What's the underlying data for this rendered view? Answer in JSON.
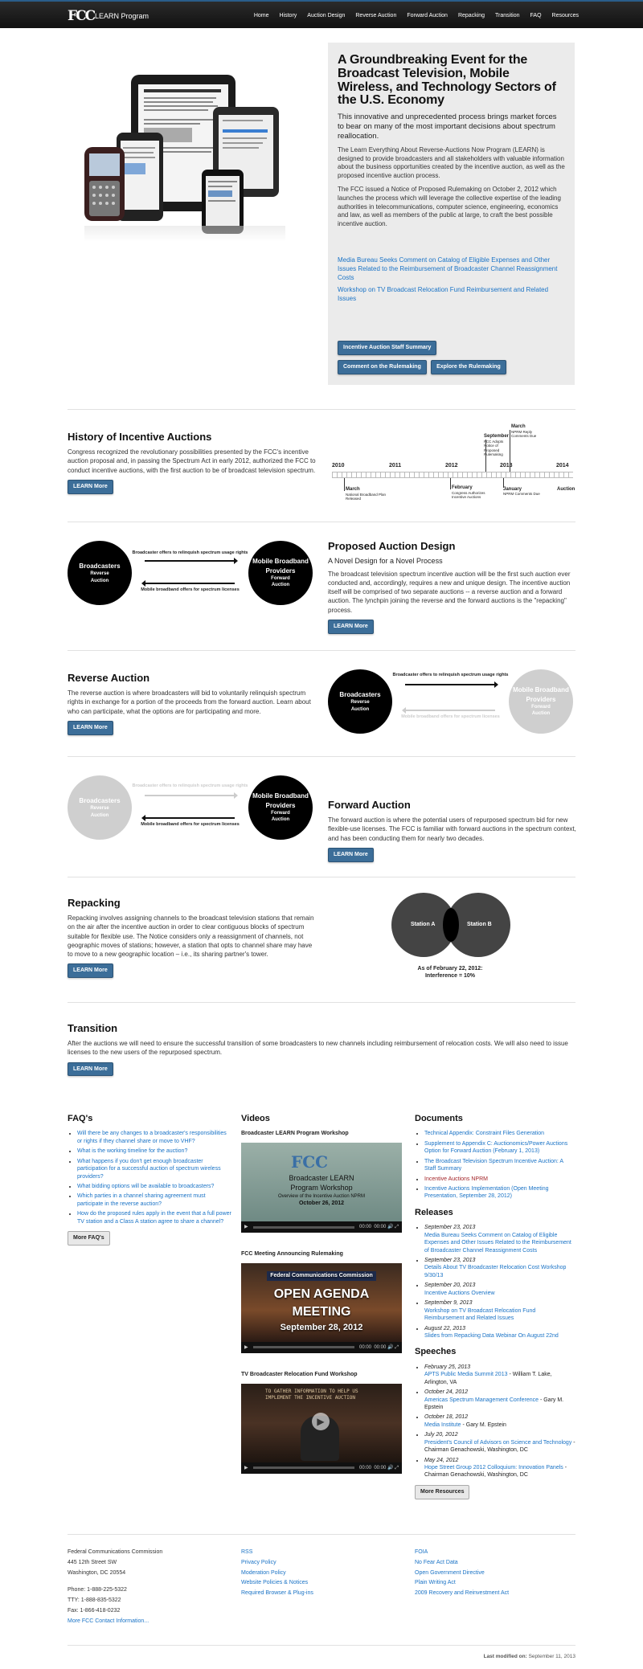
{
  "header": {
    "logo": "FCC",
    "brand": "LEARN Program",
    "nav": [
      "Home",
      "History",
      "Auction Design",
      "Reverse Auction",
      "Forward Auction",
      "Repacking",
      "Transition",
      "FAQ",
      "Resources"
    ]
  },
  "hero": {
    "title": "A Groundbreaking Event for the Broadcast Television, Mobile Wireless, and Technology Sectors of the U.S. Economy",
    "lead": "This innovative and unprecedented process brings market forces to bear on many of the most important decisions about spectrum reallocation.",
    "p1": "The Learn Everything About Reverse-Auctions Now Program (LEARN) is designed to provide broadcasters and all stakeholders with valuable information about the business opportunities created by the incentive auction, as well as the proposed incentive auction process.",
    "p2": "The FCC issued a Notice of Proposed Rulemaking on October 2, 2012 which launches the process which will leverage the collective expertise of the leading authorities in telecommunications, computer science, engineering, economics and law, as well as members of the public at large, to craft the best possible incentive auction.",
    "link1": "Media Bureau Seeks Comment on Catalog of Eligible Expenses and Other Issues Related to the Reimbursement of Broadcaster Channel Reassignment Costs",
    "link2": "Workshop on TV Broadcast Relocation Fund Reimbursement and Related Issues",
    "btn1": "Incentive Auction Staff Summary",
    "btn2": "Comment on the Rulemaking",
    "btn3": "Explore the Rulemaking"
  },
  "history": {
    "title": "History of Incentive Auctions",
    "text": "Congress recognized the revolutionary possibilities presented by the FCC's incentive auction proposal and, in passing the Spectrum Act in early 2012, authorized the FCC to conduct incentive auctions, with the first auction to be of broadcast television spectrum.",
    "btn": "LEARN More",
    "years": [
      "2010",
      "2011",
      "2012",
      "2013",
      "2014"
    ],
    "ev_march": "March",
    "ev_march_d": "National Broadband Plan Released",
    "ev_feb": "February",
    "ev_feb_d": "Congress Authorizes Incentive Auctions",
    "ev_sep": "September",
    "ev_sep_d": "FCC Adopts Notice of Proposed Rulemaking",
    "ev_march2": "March",
    "ev_march2_d": "NPRM Reply Comments Due",
    "ev_jan": "January",
    "ev_jan_d": "NPRM Comments Due",
    "ev_auction": "Auction"
  },
  "design": {
    "title": "Proposed Auction Design",
    "subtitle": "A Novel Design for a Novel Process",
    "text": "The broadcast television spectrum incentive auction will be the first such auction ever conducted and, accordingly, requires a new and unique design. The incentive auction itself will be comprised of two separate auctions -- a reverse auction and a forward auction. The lynchpin joining the reverse and the forward auctions is the \"repacking\" process.",
    "btn": "LEARN More"
  },
  "diagram": {
    "b1": "Broadcasters",
    "b2": "Reverse",
    "b3": "Auction",
    "m1": "Mobile Broadband",
    "m2": "Providers",
    "m3": "Forward",
    "m4": "Auction",
    "top": "Broadcaster offers to relinquish spectrum usage rights",
    "bottom": "Mobile broadband offers for spectrum licenses"
  },
  "reverse": {
    "title": "Reverse Auction",
    "text": "The reverse auction is where broadcasters will bid to voluntarily relinquish spectrum rights in exchange for a portion of the proceeds from the forward auction. Learn about who can participate, what the options are for participating and more.",
    "btn": "LEARN More"
  },
  "forward": {
    "title": "Forward Auction",
    "text": "The forward auction is where the potential users of repurposed spectrum bid for new flexible-use licenses. The FCC is familiar with forward auctions in the spectrum context, and has been conducting them for nearly two decades.",
    "btn": "LEARN More"
  },
  "repacking": {
    "title": "Repacking",
    "text": "Repacking involves assigning channels to the broadcast television stations that remain on the air after the incentive auction in order to clear contiguous blocks of spectrum suitable for flexible use. The Notice considers only a reassignment of channels, not geographic moves of stations; however, a station that opts to channel share may have to move to a new geographic location – i.e., its sharing partner's tower.",
    "btn": "LEARN More",
    "a": "Station A",
    "b": "Station B",
    "cap1": "As of February 22, 2012:",
    "cap2": "Interference = 10%"
  },
  "transition": {
    "title": "Transition",
    "text": "After the auctions we will need to ensure the successful transition of some broadcasters to new channels including reimbursement of relocation costs. We will also need to issue licenses to the new users of the repurposed spectrum.",
    "btn": "LEARN More"
  },
  "faqs": {
    "title": "FAQ's",
    "items": [
      "Will there be any changes to a broadcaster's responsibilities or rights if they channel share or move to VHF?",
      "What is the working timeline for the auction?",
      "What happens if you don't get enough broadcaster participation for a successful auction of spectrum wireless providers?",
      "What bidding options will be available to broadcasters?",
      "Which parties in a channel sharing agreement must participate in the reverse auction?",
      "How do the proposed rules apply in the event that a full power TV station and a Class A station agree to share a channel?"
    ],
    "btn": "More FAQ's"
  },
  "videos": {
    "title": "Videos",
    "v1": "Broadcaster LEARN Program Workshop",
    "v1a": "Broadcaster LEARN",
    "v1b": "Program Workshop",
    "v1c": "Overview of the Incentive Auction NPRM",
    "v1d": "October 26, 2012",
    "v2": "FCC Meeting Announcing Rulemaking",
    "v2a": "Federal Communications Commission",
    "v2b": "OPEN AGENDA",
    "v2c": "MEETING",
    "v2d": "September 28, 2012",
    "v3": "TV Broadcaster Relocation Fund Workshop",
    "v3a": "TO GATHER INFORMATION TO HELP US",
    "v3b": "IMPLEMENT THE INCENTIVE AUCTION",
    "time": "00:00"
  },
  "documents": {
    "title": "Documents",
    "items": [
      "Technical Appendix: Constraint Files Generation",
      "Supplement to Appendix C: Auctionomics/Power Auctions Option for Forward Auction (February 1, 2013)",
      "The Broadcast Television Spectrum Incentive Auction: A Staff Summary",
      "Incentive Auctions NPRM",
      "Incentive Auctions Implementation (Open Meeting Presentation, September 28, 2012)"
    ]
  },
  "releases": {
    "title": "Releases",
    "d1": "September 23, 2013",
    "l1": "Media Bureau Seeks Comment on Catalog of Eligible Expenses and Other Issues Related to the Reimbursement of Broadcaster Channel Reassignment Costs",
    "d2": "September 23, 2013",
    "l2": "Details About TV Broadcaster Relocation Cost Workshop 9/30/13",
    "d3": "September 20, 2013",
    "l3": "Incentive Auctions Overview",
    "d4": "September 9, 2013",
    "l4": "Workshop on TV Broadcast Relocation Fund Reimbursement and Related Issues",
    "d5": "August 22, 2013",
    "l5": "Slides from Repacking Data Webinar On August 22nd"
  },
  "speeches": {
    "title": "Speeches",
    "d1": "February 25, 2013",
    "l1": "APTS Public Media Summit 2013",
    "t1": " - William T. Lake, Arlington, VA",
    "d2": "October 24, 2012",
    "l2": "Americas Spectrum Management Conference",
    "t2": " - Gary M. Epstein",
    "d3": "October 18, 2012",
    "l3": "Media Institute",
    "t3": " - Gary M. Epstein",
    "d4": "July 20, 2012",
    "l4": "President's Council of Advisors on Science and Technology",
    "t4": " - Chairman Genachowski, Washington, DC",
    "d5": "May 24, 2012",
    "l5": "Hope Street Group 2012 Colloquium: Innovation Panels",
    "t5": " - Chairman Genachowski, Washington, DC",
    "btn": "More Resources"
  },
  "footer": {
    "org": "Federal Communications Commission",
    "addr1": "445 12th Street SW",
    "addr2": "Washington, DC 20554",
    "phone": "Phone: 1-888-225-5322",
    "tty": "TTY: 1-888-835-5322",
    "fax": "Fax: 1-866-418-0232",
    "more": "More FCC Contact Information...",
    "links2": [
      "RSS",
      "Privacy Policy",
      "Moderation Policy",
      "Website Policies & Notices",
      "Required Browser & Plug-ins"
    ],
    "links3": [
      "FOIA",
      "No Fear Act Data",
      "Open Government Directive",
      "Plain Writing Act",
      "2009 Recovery and Reinvestment Act"
    ],
    "modified_label": "Last modified on:",
    "modified": "September 11, 2013"
  }
}
